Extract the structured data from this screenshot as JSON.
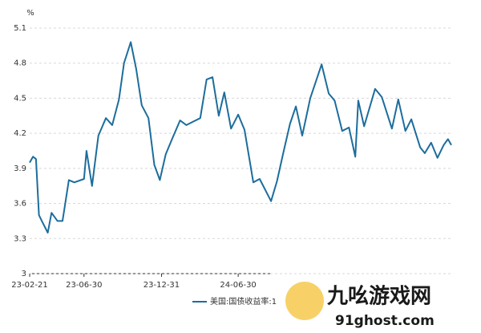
{
  "chart_data": {
    "type": "line",
    "unit": "%",
    "x": [
      "23-02-21",
      "23-03-01",
      "23-03-08",
      "23-03-15",
      "23-03-22",
      "23-04-05",
      "23-04-14",
      "23-04-28",
      "23-05-10",
      "23-05-25",
      "23-06-07",
      "23-06-30",
      "23-07-06",
      "23-07-19",
      "23-08-03",
      "23-08-21",
      "23-09-05",
      "23-09-21",
      "23-10-03",
      "23-10-19",
      "23-11-01",
      "23-11-14",
      "23-11-30",
      "23-12-14",
      "23-12-27",
      "24-01-10",
      "24-01-25",
      "24-02-13",
      "24-02-28",
      "24-03-15",
      "24-04-01",
      "24-04-16",
      "24-04-30",
      "24-05-15",
      "24-05-28",
      "24-06-13",
      "24-06-30",
      "24-07-15",
      "24-08-05",
      "24-08-20",
      "24-09-16",
      "24-09-30",
      "24-10-15",
      "24-10-31",
      "24-11-14",
      "24-11-29",
      "24-12-18",
      "25-01-14",
      "25-01-31",
      "25-02-14",
      "25-03-04",
      "25-03-20",
      "25-04-04",
      "25-04-11",
      "25-04-25",
      "25-05-21",
      "25-06-06",
      "25-06-30",
      "25-07-15",
      "25-08-01",
      "25-08-15",
      "25-09-05",
      "25-09-16",
      "25-10-01",
      "25-10-16",
      "25-10-31",
      "25-11-10",
      "25-11-18"
    ],
    "series": [
      {
        "name": "美国:国债收益率:1",
        "color": "#1c6d9c",
        "values": [
          3.95,
          4.0,
          3.98,
          3.5,
          3.45,
          3.35,
          3.52,
          3.45,
          3.45,
          3.8,
          3.78,
          3.81,
          4.05,
          3.75,
          4.18,
          4.33,
          4.27,
          4.49,
          4.8,
          4.98,
          4.75,
          4.44,
          4.33,
          3.93,
          3.8,
          4.02,
          4.15,
          4.31,
          4.27,
          4.3,
          4.33,
          4.66,
          4.68,
          4.35,
          4.55,
          4.24,
          4.36,
          4.23,
          3.78,
          3.81,
          3.62,
          3.79,
          4.03,
          4.28,
          4.43,
          4.18,
          4.5,
          4.79,
          4.54,
          4.48,
          4.22,
          4.25,
          4.0,
          4.48,
          4.26,
          4.58,
          4.51,
          4.24,
          4.49,
          4.22,
          4.32,
          4.08,
          4.03,
          4.12,
          3.99,
          4.1,
          4.15,
          4.1
        ]
      }
    ],
    "xticks": [
      "23-02-21",
      "23-06-30",
      "23-12-31",
      "24-06-30"
    ],
    "ylim": [
      3,
      5.1
    ],
    "yticks": [
      3,
      3.3,
      3.6,
      3.9,
      4.2,
      4.5,
      4.8,
      5.1
    ],
    "grid": true
  },
  "watermark": {
    "name": "九吆游戏网",
    "url": "91ghost.com"
  }
}
